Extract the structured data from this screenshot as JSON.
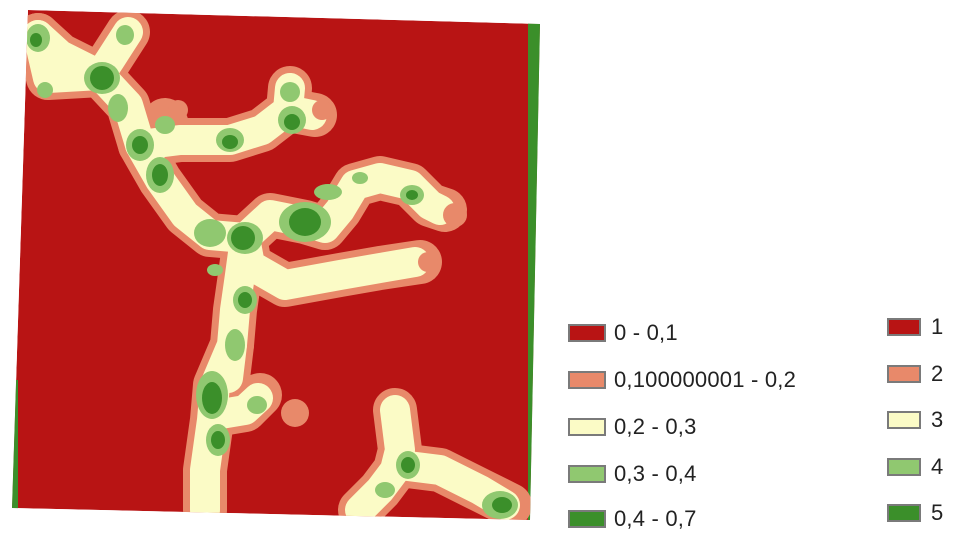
{
  "map": {
    "classes": [
      {
        "code": 1,
        "range": "0 - 0,1",
        "color": "#b81414"
      },
      {
        "code": 2,
        "range": "0,100000001 - 0,2",
        "color": "#e8896a"
      },
      {
        "code": 3,
        "range": "0,2 - 0,3",
        "color": "#fbfbc6"
      },
      {
        "code": 4,
        "range": "0,3 - 0,4",
        "color": "#90c870"
      },
      {
        "code": 5,
        "range": "0,4 - 0,7",
        "color": "#3b8f2a"
      }
    ]
  },
  "legend_ranges": {
    "items": [
      {
        "label": "0 - 0,1",
        "color": "#b81414"
      },
      {
        "label": "0,100000001 - 0,2",
        "color": "#e8896a"
      },
      {
        "label": "0,2 - 0,3",
        "color": "#fbfbc6"
      },
      {
        "label": "0,3 - 0,4",
        "color": "#90c870"
      },
      {
        "label": "0,4 - 0,7",
        "color": "#3b8f2a"
      }
    ]
  },
  "legend_codes": {
    "items": [
      {
        "label": "1",
        "color": "#b81414"
      },
      {
        "label": "2",
        "color": "#e8896a"
      },
      {
        "label": "3",
        "color": "#fbfbc6"
      },
      {
        "label": "4",
        "color": "#90c870"
      },
      {
        "label": "5",
        "color": "#3b8f2a"
      }
    ]
  }
}
